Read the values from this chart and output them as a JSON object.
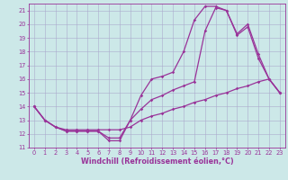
{
  "line1": {
    "x": [
      0,
      1,
      2,
      3,
      4,
      5,
      6,
      7,
      8,
      9,
      10,
      11,
      12,
      13,
      14,
      15,
      16,
      17,
      18,
      19,
      20,
      21,
      22,
      23
    ],
    "y": [
      14.0,
      13.0,
      12.5,
      12.2,
      12.2,
      12.2,
      12.2,
      11.5,
      11.5,
      13.0,
      14.8,
      16.0,
      16.2,
      16.5,
      18.0,
      20.3,
      21.3,
      21.3,
      21.0,
      19.3,
      20.0,
      17.8,
      16.0,
      15.0
    ],
    "color": "#993399",
    "marker": "D",
    "markersize": 1.8,
    "linewidth": 0.9
  },
  "line2": {
    "x": [
      0,
      1,
      2,
      3,
      4,
      5,
      6,
      7,
      8,
      9,
      10,
      11,
      12,
      13,
      14,
      15,
      16,
      17,
      18,
      19,
      20,
      21,
      22,
      23
    ],
    "y": [
      14.0,
      13.0,
      12.5,
      12.2,
      12.2,
      12.2,
      12.2,
      11.7,
      11.7,
      13.0,
      13.8,
      14.5,
      14.8,
      15.2,
      15.5,
      15.8,
      19.5,
      21.2,
      21.0,
      19.2,
      19.8,
      17.5,
      16.0,
      15.0
    ],
    "color": "#993399",
    "marker": "D",
    "markersize": 1.8,
    "linewidth": 0.9
  },
  "line3": {
    "x": [
      0,
      1,
      2,
      3,
      4,
      5,
      6,
      7,
      8,
      9,
      10,
      11,
      12,
      13,
      14,
      15,
      16,
      17,
      18,
      19,
      20,
      21,
      22,
      23
    ],
    "y": [
      14.0,
      13.0,
      12.5,
      12.3,
      12.3,
      12.3,
      12.3,
      12.3,
      12.3,
      12.5,
      13.0,
      13.3,
      13.5,
      13.8,
      14.0,
      14.3,
      14.5,
      14.8,
      15.0,
      15.3,
      15.5,
      15.8,
      16.0,
      15.0
    ],
    "color": "#993399",
    "marker": "D",
    "markersize": 1.8,
    "linewidth": 0.9
  },
  "xlim": [
    -0.5,
    23.5
  ],
  "ylim": [
    11,
    21.5
  ],
  "yticks": [
    11,
    12,
    13,
    14,
    15,
    16,
    17,
    18,
    19,
    20,
    21
  ],
  "xticks": [
    0,
    1,
    2,
    3,
    4,
    5,
    6,
    7,
    8,
    9,
    10,
    11,
    12,
    13,
    14,
    15,
    16,
    17,
    18,
    19,
    20,
    21,
    22,
    23
  ],
  "xlabel": "Windchill (Refroidissement éolien,°C)",
  "bg_color": "#cce8e8",
  "grid_color": "#aaaacc",
  "tick_color": "#993399",
  "label_color": "#993399",
  "tick_fontsize": 4.8,
  "xlabel_fontsize": 5.8
}
